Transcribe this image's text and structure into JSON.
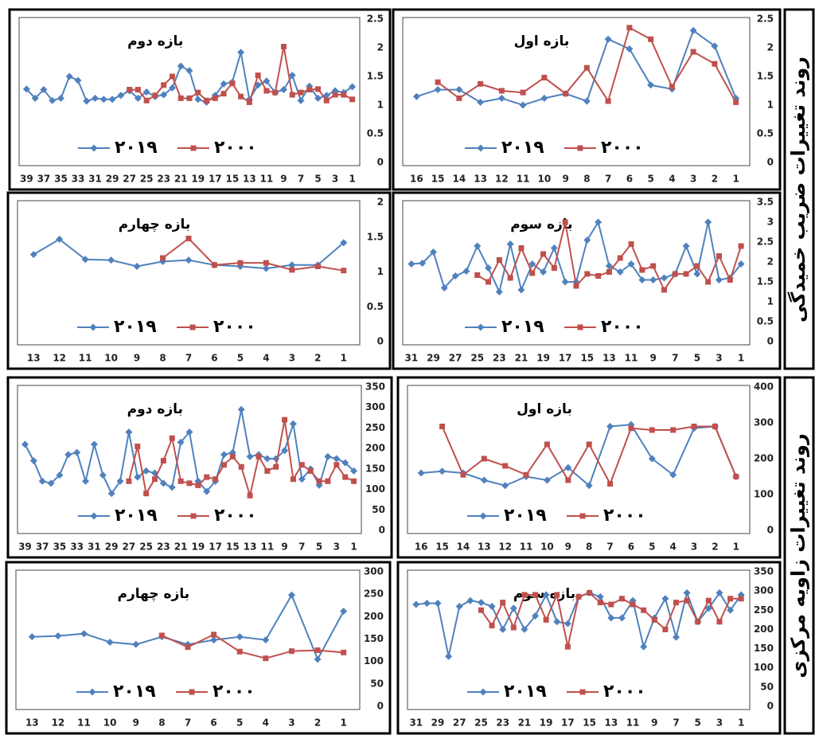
{
  "side_labels": [
    "روند تغییرات ضریب خمیدگی",
    "روند تغییرات زاویه مرکزی"
  ],
  "chart_data": [
    {
      "type": "line",
      "title": "بازه دوم",
      "x_reversed": true,
      "x": [
        1,
        2,
        3,
        4,
        5,
        6,
        7,
        8,
        9,
        10,
        11,
        12,
        13,
        14,
        15,
        16,
        17,
        18,
        19,
        20,
        21,
        22,
        23,
        24,
        25,
        26,
        27,
        28,
        29,
        30,
        31,
        32,
        33,
        34,
        35,
        36,
        37,
        38,
        39
      ],
      "xlim": [
        0.5,
        39.5
      ],
      "xticks": [
        1,
        3,
        5,
        7,
        9,
        11,
        13,
        15,
        17,
        19,
        21,
        23,
        25,
        27,
        29,
        31,
        33,
        35,
        37,
        39
      ],
      "ylim": [
        0,
        2.5
      ],
      "yticks": [
        0,
        0.5,
        1,
        1.5,
        2,
        2.5
      ],
      "series": [
        {
          "name": "۲۰۱۹",
          "color": "#4f81bd",
          "marker": "diamond",
          "values": [
            1.32,
            1.22,
            1.25,
            1.17,
            1.12,
            1.33,
            1.08,
            1.52,
            1.27,
            1.22,
            1.42,
            1.35,
            1.1,
            1.92,
            1.4,
            1.37,
            1.17,
            1.05,
            1.1,
            1.6,
            1.68,
            1.3,
            1.18,
            1.15,
            1.23,
            1.12,
            1.25,
            1.17,
            1.1,
            1.1,
            1.12,
            1.07,
            1.43,
            1.5,
            1.12,
            1.08,
            1.27,
            1.12,
            1.28
          ]
        },
        {
          "name": "۲۰۰۰",
          "color": "#c0504d",
          "marker": "square",
          "values": [
            1.1,
            1.18,
            1.18,
            1.08,
            1.28,
            1.27,
            1.22,
            1.18,
            2.02,
            1.22,
            1.25,
            1.52,
            1.05,
            1.15,
            1.38,
            1.2,
            1.12,
            1.08,
            1.22,
            1.12,
            1.12,
            1.5,
            1.35,
            1.17,
            1.08,
            1.27,
            1.27,
            null,
            null,
            null,
            null,
            null,
            null,
            null,
            null,
            null,
            null,
            null,
            null
          ]
        }
      ]
    },
    {
      "type": "line",
      "title": "بازه اول",
      "x_reversed": true,
      "x": [
        1,
        2,
        3,
        4,
        5,
        6,
        7,
        8,
        9,
        10,
        11,
        12,
        13,
        14,
        15,
        16
      ],
      "xlim": [
        0.5,
        16.5
      ],
      "xticks": [
        1,
        2,
        3,
        4,
        5,
        6,
        7,
        8,
        9,
        10,
        11,
        12,
        13,
        14,
        15,
        16
      ],
      "ylim": [
        0,
        2.5
      ],
      "yticks": [
        0,
        0.5,
        1,
        1.5,
        2,
        2.5
      ],
      "series": [
        {
          "name": "۲۰۱۹",
          "color": "#4f81bd",
          "marker": "diamond",
          "values": [
            1.12,
            2.03,
            2.3,
            1.28,
            1.35,
            1.98,
            2.15,
            1.07,
            1.2,
            1.12,
            1.0,
            1.12,
            1.05,
            1.27,
            1.27,
            1.15
          ]
        },
        {
          "name": "۲۰۰۰",
          "color": "#c0504d",
          "marker": "square",
          "values": [
            1.05,
            1.72,
            1.93,
            1.32,
            2.15,
            2.35,
            1.07,
            1.65,
            1.2,
            1.48,
            1.22,
            1.25,
            1.37,
            1.12,
            1.4,
            null
          ]
        }
      ]
    },
    {
      "type": "line",
      "title": "بازه چهارم",
      "x_reversed": true,
      "x": [
        1,
        2,
        3,
        4,
        5,
        6,
        7,
        8,
        9,
        10,
        11,
        12,
        13
      ],
      "xlim": [
        0.5,
        13.5
      ],
      "xticks": [
        1,
        2,
        3,
        4,
        5,
        6,
        7,
        8,
        9,
        10,
        11,
        12,
        13
      ],
      "ylim": [
        0,
        2
      ],
      "yticks": [
        0,
        0.5,
        1,
        1.5,
        2
      ],
      "series": [
        {
          "name": "۲۰۱۹",
          "color": "#4f81bd",
          "marker": "diamond",
          "values": [
            1.42,
            1.1,
            1.1,
            1.05,
            1.08,
            1.1,
            1.17,
            1.15,
            1.08,
            1.17,
            1.18,
            1.47,
            1.25
          ]
        },
        {
          "name": "۲۰۰۰",
          "color": "#c0504d",
          "marker": "square",
          "values": [
            1.02,
            1.08,
            1.03,
            1.13,
            1.13,
            1.1,
            1.48,
            1.2,
            null,
            null,
            null,
            null,
            null
          ]
        }
      ]
    },
    {
      "type": "line",
      "title": "بازه سوم",
      "x_reversed": true,
      "x": [
        1,
        2,
        3,
        4,
        5,
        6,
        7,
        8,
        9,
        10,
        11,
        12,
        13,
        14,
        15,
        16,
        17,
        18,
        19,
        20,
        21,
        22,
        23,
        24,
        25,
        26,
        27,
        28,
        29,
        30,
        31
      ],
      "xlim": [
        0.5,
        31.5
      ],
      "xticks": [
        1,
        3,
        5,
        7,
        9,
        11,
        13,
        15,
        17,
        19,
        21,
        23,
        25,
        27,
        29,
        31
      ],
      "ylim": [
        0,
        3.5
      ],
      "yticks": [
        0,
        0.5,
        1,
        1.5,
        2,
        2.5,
        3,
        3.5
      ],
      "series": [
        {
          "name": "۲۰۱۹",
          "color": "#4f81bd",
          "marker": "diamond",
          "values": [
            1.95,
            1.6,
            1.55,
            3.0,
            1.7,
            2.4,
            1.7,
            1.6,
            1.55,
            1.55,
            1.95,
            1.75,
            1.9,
            3.0,
            2.55,
            1.5,
            1.5,
            2.35,
            1.75,
            1.95,
            1.3,
            2.45,
            1.25,
            1.85,
            2.4,
            1.77,
            1.65,
            1.35,
            2.25,
            1.97,
            1.95
          ]
        },
        {
          "name": "۲۰۰۰",
          "color": "#c0504d",
          "marker": "square",
          "values": [
            2.4,
            1.55,
            2.15,
            1.5,
            1.9,
            1.7,
            1.7,
            1.3,
            1.9,
            1.8,
            2.45,
            2.1,
            1.75,
            1.65,
            1.7,
            1.4,
            3.0,
            1.85,
            2.2,
            1.72,
            2.35,
            1.6,
            2.05,
            1.5,
            1.67,
            null,
            null,
            null,
            null,
            null,
            null
          ]
        }
      ]
    },
    {
      "type": "line",
      "title": "بازه دوم",
      "x_reversed": true,
      "x": [
        1,
        2,
        3,
        4,
        5,
        6,
        7,
        8,
        9,
        10,
        11,
        12,
        13,
        14,
        15,
        16,
        17,
        18,
        19,
        20,
        21,
        22,
        23,
        24,
        25,
        26,
        27,
        28,
        29,
        30,
        31,
        32,
        33,
        34,
        35,
        36,
        37,
        38,
        39
      ],
      "xlim": [
        0.5,
        39.5
      ],
      "xticks": [
        1,
        3,
        5,
        7,
        9,
        11,
        13,
        15,
        17,
        19,
        21,
        23,
        25,
        27,
        29,
        31,
        33,
        35,
        37,
        39
      ],
      "ylim": [
        0,
        350
      ],
      "yticks": [
        0,
        50,
        100,
        150,
        200,
        250,
        300,
        350
      ],
      "series": [
        {
          "name": "۲۰۱۹",
          "color": "#4f81bd",
          "marker": "diamond",
          "values": [
            145,
            165,
            175,
            180,
            110,
            150,
            125,
            260,
            195,
            175,
            175,
            185,
            180,
            295,
            190,
            185,
            120,
            95,
            120,
            240,
            215,
            105,
            115,
            140,
            145,
            130,
            240,
            120,
            90,
            135,
            210,
            120,
            190,
            185,
            135,
            115,
            120,
            170,
            210
          ]
        },
        {
          "name": "۲۰۰۰",
          "color": "#c0504d",
          "marker": "square",
          "values": [
            120,
            130,
            160,
            120,
            120,
            145,
            160,
            125,
            270,
            155,
            145,
            180,
            85,
            155,
            180,
            160,
            125,
            130,
            110,
            115,
            120,
            225,
            170,
            125,
            90,
            205,
            120,
            null,
            null,
            null,
            null,
            null,
            null,
            null,
            null,
            null,
            null,
            null,
            null
          ]
        }
      ]
    },
    {
      "type": "line",
      "title": "بازه اول",
      "x_reversed": true,
      "x": [
        1,
        2,
        3,
        4,
        5,
        6,
        7,
        8,
        9,
        10,
        11,
        12,
        13,
        14,
        15,
        16
      ],
      "xlim": [
        0.5,
        16.5
      ],
      "xticks": [
        1,
        2,
        3,
        4,
        5,
        6,
        7,
        8,
        9,
        10,
        11,
        12,
        13,
        14,
        15,
        16
      ],
      "ylim": [
        0,
        400
      ],
      "yticks": [
        0,
        100,
        200,
        300,
        400
      ],
      "series": [
        {
          "name": "۲۰۱۹",
          "color": "#4f81bd",
          "marker": "diamond",
          "values": [
            150,
            290,
            285,
            155,
            200,
            295,
            290,
            125,
            175,
            140,
            150,
            125,
            140,
            160,
            165,
            160
          ]
        },
        {
          "name": "۲۰۰۰",
          "color": "#c0504d",
          "marker": "square",
          "values": [
            150,
            290,
            290,
            280,
            280,
            285,
            130,
            240,
            140,
            240,
            155,
            180,
            200,
            155,
            290,
            null
          ]
        }
      ]
    },
    {
      "type": "line",
      "title": "بازه چهارم",
      "x_reversed": true,
      "x": [
        1,
        2,
        3,
        4,
        5,
        6,
        7,
        8,
        9,
        10,
        11,
        12,
        13
      ],
      "xlim": [
        0.5,
        13.5
      ],
      "xticks": [
        1,
        2,
        3,
        4,
        5,
        6,
        7,
        8,
        9,
        10,
        11,
        12,
        13
      ],
      "ylim": [
        0,
        300
      ],
      "yticks": [
        0,
        50,
        100,
        150,
        200,
        250,
        300
      ],
      "series": [
        {
          "name": "۲۰۱۹",
          "color": "#4f81bd",
          "marker": "diamond",
          "values": [
            212,
            105,
            248,
            148,
            155,
            148,
            138,
            155,
            138,
            143,
            162,
            157,
            155
          ]
        },
        {
          "name": "۲۰۰۰",
          "color": "#c0504d",
          "marker": "square",
          "values": [
            120,
            125,
            123,
            107,
            122,
            160,
            132,
            158,
            null,
            null,
            null,
            null,
            null
          ]
        }
      ]
    },
    {
      "type": "line",
      "title": "بازه سوم",
      "x_reversed": true,
      "x": [
        1,
        2,
        3,
        4,
        5,
        6,
        7,
        8,
        9,
        10,
        11,
        12,
        13,
        14,
        15,
        16,
        17,
        18,
        19,
        20,
        21,
        22,
        23,
        24,
        25,
        26,
        27,
        28,
        29,
        30,
        31
      ],
      "xlim": [
        0.5,
        31.5
      ],
      "xticks": [
        1,
        3,
        5,
        7,
        9,
        11,
        13,
        15,
        17,
        19,
        21,
        23,
        25,
        27,
        29,
        31
      ],
      "ylim": [
        0,
        350
      ],
      "yticks": [
        0,
        50,
        100,
        150,
        200,
        250,
        300,
        350
      ],
      "series": [
        {
          "name": "۲۰۱۹",
          "color": "#4f81bd",
          "marker": "diamond",
          "values": [
            290,
            250,
            295,
            255,
            220,
            295,
            180,
            280,
            230,
            155,
            275,
            230,
            230,
            285,
            295,
            285,
            215,
            220,
            290,
            235,
            200,
            255,
            200,
            260,
            270,
            275,
            260,
            130,
            268,
            268,
            265
          ]
        },
        {
          "name": "۲۰۰۰",
          "color": "#c0504d",
          "marker": "square",
          "values": [
            280,
            280,
            220,
            275,
            220,
            275,
            270,
            200,
            225,
            250,
            265,
            280,
            265,
            270,
            295,
            285,
            155,
            290,
            225,
            290,
            290,
            205,
            270,
            210,
            250,
            null,
            null,
            null,
            null,
            null,
            null
          ]
        }
      ]
    }
  ]
}
